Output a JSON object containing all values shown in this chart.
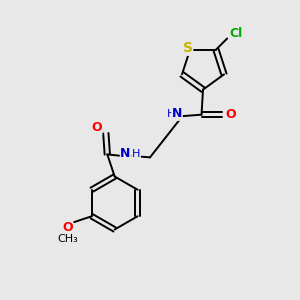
{
  "background_color": "#e8e8e8",
  "bond_color": "#000000",
  "S_color": "#c8b400",
  "N_color": "#0000cd",
  "O_color": "#ff0000",
  "Cl_color": "#00aa00",
  "figsize": [
    3.0,
    3.0
  ],
  "dpi": 100,
  "xlim": [
    0,
    10
  ],
  "ylim": [
    0,
    10
  ]
}
